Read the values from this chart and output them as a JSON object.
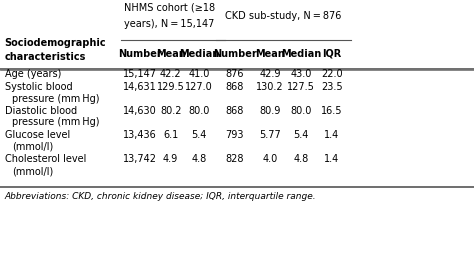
{
  "header1_line1": "NHMS cohort (≥18",
  "header1_line2": "years), N = 15,147",
  "header2": "CKD sub-study, N = 876",
  "col_headers": [
    "Number",
    "Mean",
    "Median",
    "Number",
    "Mean",
    "Median",
    "IQR"
  ],
  "left_col_header1": "Sociodemographic",
  "left_col_header2": "characteristics",
  "rows": [
    {
      "label1": "Age (years)",
      "label2": "",
      "values": [
        "15,147",
        "42.2",
        "41.0",
        "876",
        "42.9",
        "43.0",
        "22.0"
      ]
    },
    {
      "label1": "Systolic blood",
      "label2": "pressure (mm Hg)",
      "values": [
        "14,631",
        "129.5",
        "127.0",
        "868",
        "130.2",
        "127.5",
        "23.5"
      ]
    },
    {
      "label1": "Diastolic blood",
      "label2": "pressure (mm Hg)",
      "values": [
        "14,630",
        "80.2",
        "80.0",
        "868",
        "80.9",
        "80.0",
        "16.5"
      ]
    },
    {
      "label1": "Glucose level",
      "label2": "(mmol/l)",
      "values": [
        "13,436",
        "6.1",
        "5.4",
        "793",
        "5.77",
        "5.4",
        "1.4"
      ]
    },
    {
      "label1": "Cholesterol level",
      "label2": "(mmol/l)",
      "values": [
        "13,742",
        "4.9",
        "4.8",
        "828",
        "4.0",
        "4.8",
        "1.4"
      ]
    }
  ],
  "footnote": "Abbreviations: CKD, chronic kidney disease; IQR, interquartile range.",
  "bg_color": "#ffffff",
  "text_color": "#000000",
  "line_color": "#555555",
  "fs": 7.0,
  "fs_bold": 7.0,
  "fs_footnote": 6.5
}
